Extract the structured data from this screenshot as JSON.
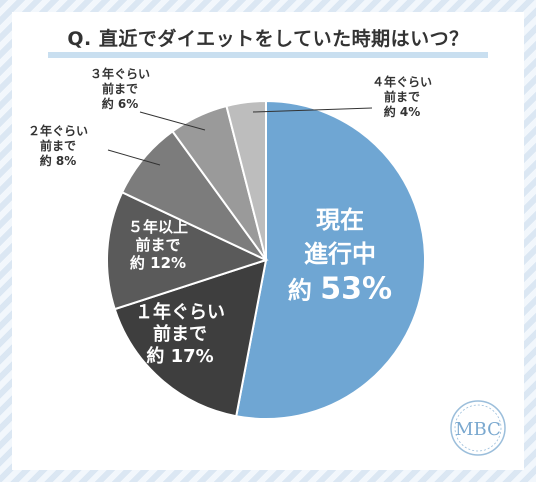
{
  "title": "Q. 直近でダイエットをしていた時期はいつ？",
  "logo": "MBC",
  "chart_data": {
    "type": "pie",
    "title": "Q. 直近でダイエットをしていた時期はいつ？",
    "unit": "%",
    "slices": [
      {
        "lines": [
          "現在",
          "進行中"
        ],
        "prefix": "約",
        "value": 53,
        "color": "#6fa6d3",
        "text_color": "#ffffff",
        "label_style": "inside-large"
      },
      {
        "lines": [
          "１年ぐらい",
          "前まで"
        ],
        "prefix": "約",
        "value": 17,
        "color": "#3e3e3e",
        "text_color": "#ffffff",
        "label_style": "inside"
      },
      {
        "lines": [
          "５年以上",
          "前まで"
        ],
        "prefix": "約",
        "value": 12,
        "color": "#5a5a5a",
        "text_color": "#ffffff",
        "label_style": "inside"
      },
      {
        "lines": [
          "２年ぐらい",
          "前まで"
        ],
        "prefix": "約",
        "value": 8,
        "color": "#7c7c7c",
        "text_color": "#333333",
        "label_style": "outside"
      },
      {
        "lines": [
          "３年ぐらい",
          "前まで"
        ],
        "prefix": "約",
        "value": 6,
        "color": "#9a9a9a",
        "text_color": "#333333",
        "label_style": "outside"
      },
      {
        "lines": [
          "４年ぐらい",
          "前まで"
        ],
        "prefix": "約",
        "value": 4,
        "color": "#bdbdbd",
        "text_color": "#333333",
        "label_style": "outside"
      }
    ]
  }
}
